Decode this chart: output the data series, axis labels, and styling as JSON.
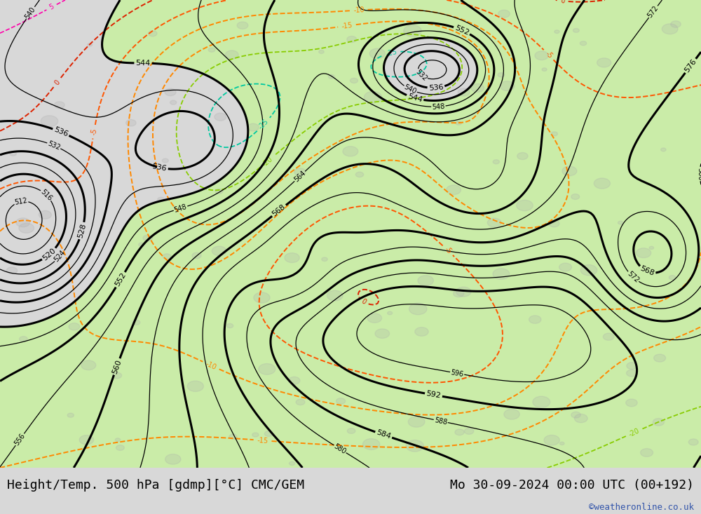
{
  "title_left": "Height/Temp. 500 hPa [gdmp][°C] CMC/GEM",
  "title_right": "Mo 30-09-2024 00:00 UTC (00+192)",
  "credit": "©weatheronline.co.uk",
  "bg_color": "#d8d8d8",
  "green_fill": "#c8f0a0",
  "font_size_title": 13,
  "font_size_credit": 9
}
